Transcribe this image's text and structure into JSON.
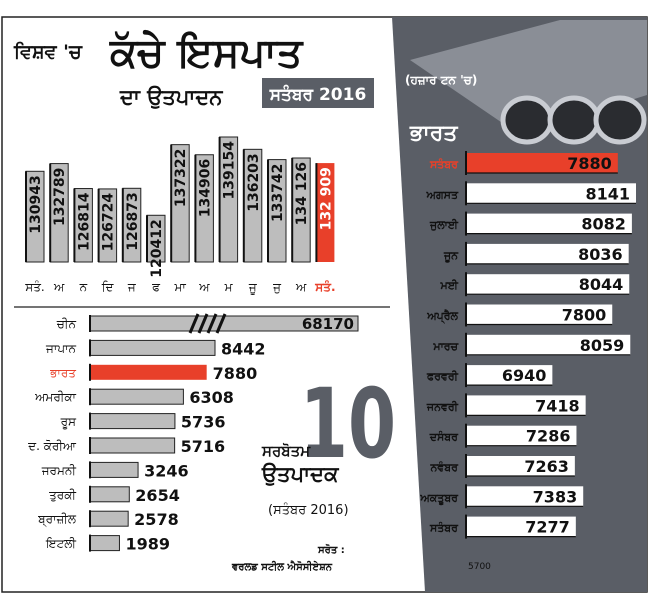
{
  "title_prefix": "ਵਿਸ਼ਵ 'ਚ",
  "title_main": "ਕੱਚੇ ਇਸਪਾਤ",
  "title_sub": "ਦਾ ਉਤਪਾਦਨ",
  "title_badge": "ਸਤੰਬਰ 2016",
  "unit_note": "(ਹਜ਼ਾਰ ਟਨ 'ਚ)",
  "big_number": "10",
  "big_label_1": "ਸਰਬੋਤਮ",
  "big_label_2": "ਉਤਪਾਦਕ",
  "big_label_3": "(ਸਤੰਬਰ 2016)",
  "source_label": "ਸਰੋਤ :",
  "source_name": "ਵਰਲਡ ਸਟੀਲ ਐਸੋਸੀਏਸ਼ਨ",
  "colors": {
    "red": "#e8402a",
    "gray": "#bdbdbd",
    "panel": "#5a5e66",
    "dark": "#111111"
  },
  "chart_data": [
    {
      "type": "bar",
      "orientation": "vertical",
      "categories": [
        "ਸਤੰ.",
        "ਅ",
        "ਨ",
        "ਦਿ",
        "ਜ",
        "ਫ",
        "ਮਾ",
        "ਅ",
        "ਮ",
        "ਜੂ",
        "ਜੁ",
        "ਅ",
        "ਸਤੰ."
      ],
      "values": [
        130943,
        132789,
        126814,
        126724,
        126873,
        120412,
        137322,
        134906,
        139154,
        136203,
        133742,
        134126,
        132909
      ],
      "labels": [
        "130943",
        "132789",
        "126814",
        "126724",
        "126873",
        "120412",
        "137322",
        "134906",
        "139154",
        "136203",
        "133742",
        "134 126",
        "132 909"
      ],
      "highlight_index": 12,
      "title": "",
      "xlabel": "",
      "ylabel": "",
      "grid": false
    },
    {
      "type": "bar",
      "orientation": "horizontal",
      "categories": [
        "ਚੀਨ",
        "ਜਾਪਾਨ",
        "ਭਾਰਤ",
        "ਅਮਰੀਕਾ",
        "ਰੂਸ",
        "ਦ. ਕੋਰੀਆ",
        "ਜਰਮਨੀ",
        "ਤੁਰਕੀ",
        "ਬ੍ਰਾਜ਼ੀਲ",
        "ਇਟਲੀ"
      ],
      "values": [
        68170,
        8442,
        7880,
        6308,
        5736,
        5716,
        3246,
        2654,
        2578,
        1989
      ],
      "labels": [
        "68170",
        "8442",
        "7880",
        "6308",
        "5736",
        "5716",
        "3246",
        "2654",
        "2578",
        "1989"
      ],
      "highlight_index": 2,
      "axis_break_on_first": true,
      "title": "",
      "xlabel": "",
      "ylabel": ""
    },
    {
      "type": "bar",
      "orientation": "horizontal",
      "title": "ਭਾਰਤ",
      "categories": [
        "ਸਤੰਬਰ",
        "ਅਗਸਤ",
        "ਜੁਲਾਈ",
        "ਜੂਨ",
        "ਮਈ",
        "ਅਪ੍ਰੈਲ",
        "ਮਾਰਚ",
        "ਫਰਵਰੀ",
        "ਜਨਵਰੀ",
        "ਦਸੰਬਰ",
        "ਨਵੰਬਰ",
        "ਅਕਤੂਬਰ",
        "ਸਤੰਬਰ"
      ],
      "values": [
        7880,
        8141,
        8082,
        8036,
        8044,
        7800,
        8059,
        6940,
        7418,
        7286,
        7263,
        7383,
        7277
      ],
      "labels": [
        "7880",
        "8141",
        "8082",
        "8036",
        "8044",
        "7800",
        "8059",
        "6940",
        "7418",
        "7286",
        "7263",
        "7383",
        "7277"
      ],
      "highlight_index": 0,
      "xlim": [
        5700,
        8141
      ],
      "x_tick": "5700",
      "xlabel": "",
      "ylabel": ""
    }
  ]
}
